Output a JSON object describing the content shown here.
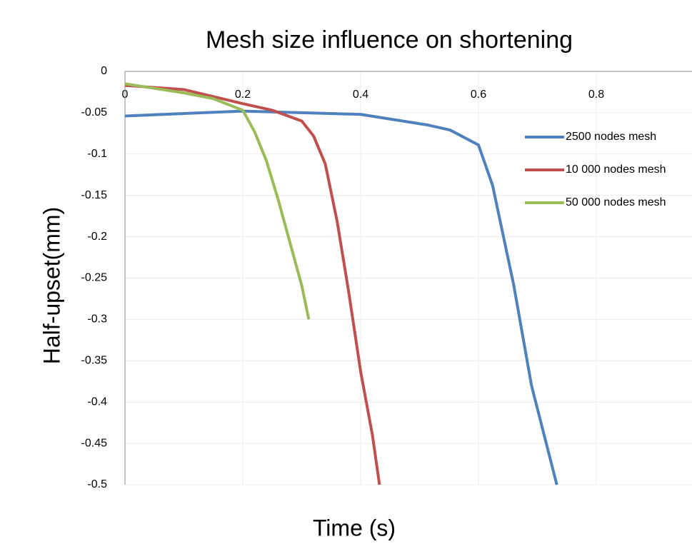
{
  "chart_data": {
    "type": "line",
    "title": "Mesh size influence on shortening",
    "xlabel": "Time (s)",
    "ylabel": "Half-upset(mm)",
    "xlim": [
      0,
      1
    ],
    "xticks": [
      0,
      0.2,
      0.4,
      0.6,
      0.8
    ],
    "ylim": [
      -0.5,
      0
    ],
    "yticks": [
      0,
      -0.05,
      -0.1,
      -0.15,
      -0.2,
      -0.25,
      -0.3,
      -0.35,
      -0.4,
      -0.45,
      -0.5
    ],
    "grid": true,
    "legend": "right",
    "series": [
      {
        "name": "2500 nodes mesh",
        "color": "#4f81bd",
        "x": [
          0,
          0.1,
          0.2,
          0.3,
          0.4,
          0.515,
          0.552,
          0.6,
          0.624,
          0.66,
          0.69,
          0.733
        ],
        "values": [
          -0.054,
          -0.051,
          -0.048,
          -0.05,
          -0.052,
          -0.065,
          -0.071,
          -0.089,
          -0.138,
          -0.259,
          -0.38,
          -0.5
        ]
      },
      {
        "name": "10 000 nodes mesh",
        "color": "#c0504d",
        "x": [
          0,
          0.1,
          0.2,
          0.25,
          0.3,
          0.32,
          0.34,
          0.36,
          0.38,
          0.4,
          0.42,
          0.432
        ],
        "values": [
          -0.017,
          -0.022,
          -0.039,
          -0.047,
          -0.06,
          -0.078,
          -0.112,
          -0.181,
          -0.268,
          -0.363,
          -0.44,
          -0.5
        ]
      },
      {
        "name": "50 000 nodes mesh",
        "color": "#9bbb59",
        "x": [
          0,
          0.1,
          0.15,
          0.2,
          0.22,
          0.24,
          0.26,
          0.28,
          0.3,
          0.312
        ],
        "values": [
          -0.015,
          -0.026,
          -0.033,
          -0.047,
          -0.073,
          -0.108,
          -0.155,
          -0.207,
          -0.259,
          -0.3
        ]
      }
    ]
  }
}
